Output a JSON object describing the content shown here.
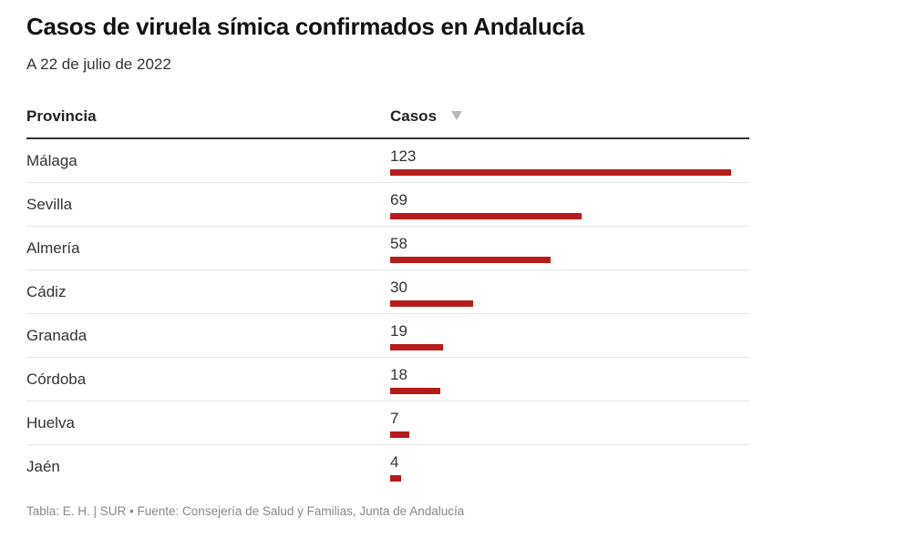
{
  "title": "Casos de viruela símica confirmados en Andalucía",
  "subtitle": "A 22 de julio de 2022",
  "colors": {
    "bar": "#b71c1c",
    "sort_arrow": "#b8b8b8"
  },
  "table": {
    "columns": [
      "Provincia",
      "Casos"
    ],
    "sort": {
      "column": "Casos",
      "direction": "descending",
      "icon": "sort-down-triangle-icon"
    }
  },
  "chart_data": {
    "type": "table",
    "title": "Casos de viruela símica confirmados en Andalucía",
    "subtitle": "A 22 de julio de 2022",
    "columns": [
      "Provincia",
      "Casos"
    ],
    "categories": [
      "Málaga",
      "Sevilla",
      "Almería",
      "Cádiz",
      "Granada",
      "Córdoba",
      "Huelva",
      "Jaén"
    ],
    "values": [
      123,
      69,
      58,
      30,
      19,
      18,
      7,
      4
    ],
    "bar_max": 123
  },
  "footer": "Tabla: E. H. | SUR • Fuente: Consejería de Salud y Familias, Junta de Andalucía"
}
